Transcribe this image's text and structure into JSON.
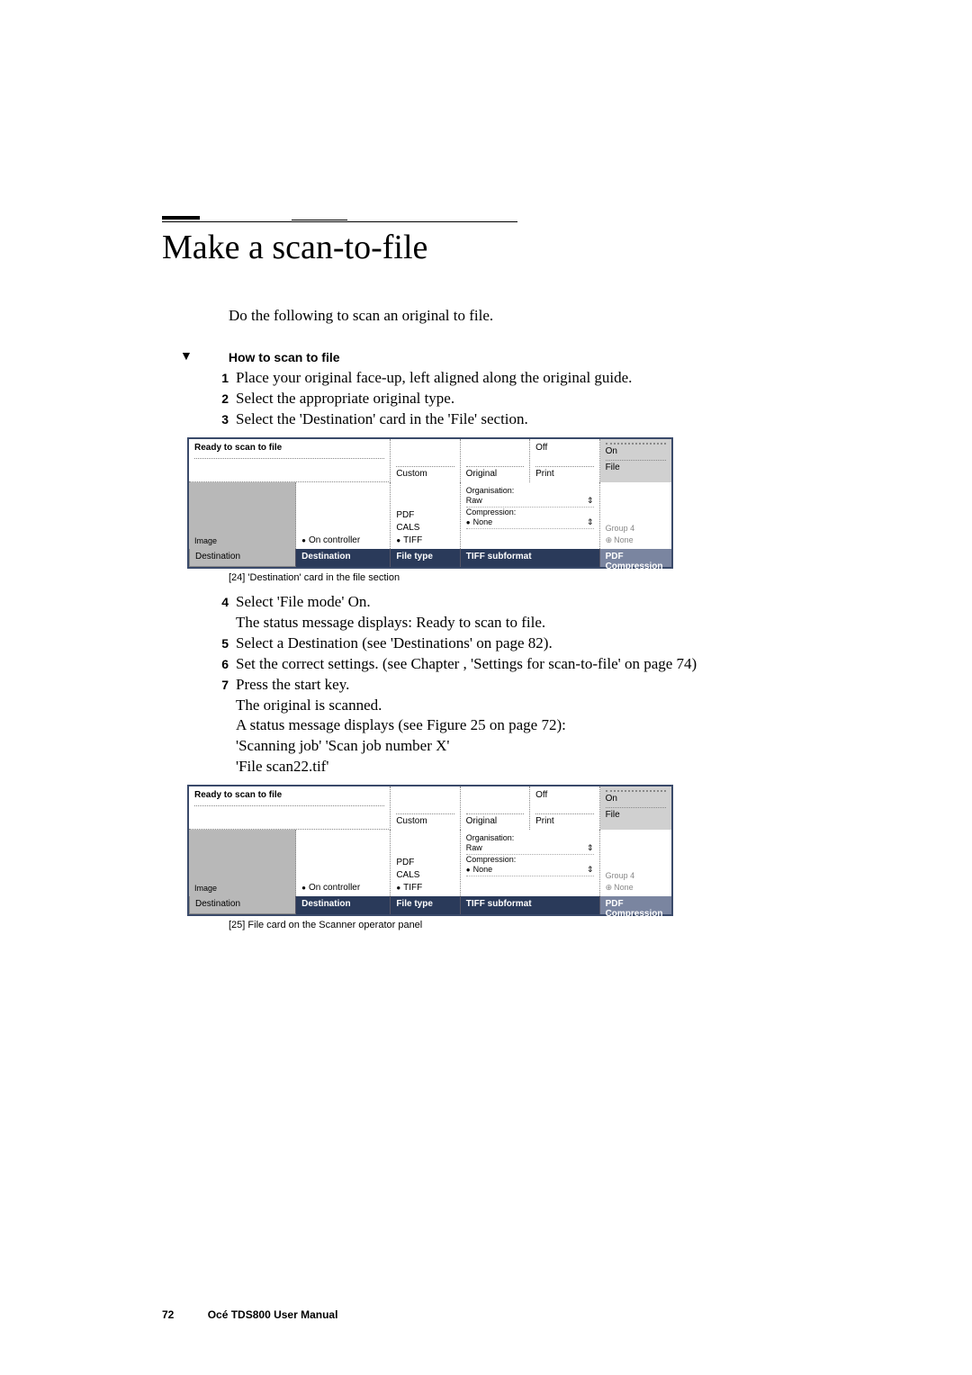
{
  "title": "Make a scan-to-file",
  "intro": "Do the following to scan an original to file.",
  "procedure_label": "How to scan to file",
  "steps_a": [
    "Place your original face-up, left aligned along the original guide.",
    "Select the appropriate original type.",
    "Select the 'Destination' card in the 'File' section."
  ],
  "caption1": "[24] 'Destination' card in the file section",
  "steps_b": [
    {
      "n": "4",
      "t": "Select 'File mode' On.\nThe status message displays: Ready to scan to file."
    },
    {
      "n": "5",
      "t": "Select a Destination (see 'Destinations' on page 82)."
    },
    {
      "n": "6",
      "t": "Set the correct settings. (see Chapter , 'Settings for scan-to-file' on page 74)"
    },
    {
      "n": "7",
      "t": "Press the start key.\nThe original is scanned.\nA status message displays (see Figure 25 on page 72):\n'Scanning job' 'Scan job number X'\n'File scan22.tif'"
    }
  ],
  "caption2": "[25] File card on the Scanner operator panel",
  "panel": {
    "ready": "Ready to scan to file",
    "custom": "Custom",
    "original": "Original",
    "off": "Off",
    "print": "Print",
    "on": "On",
    "file": "File",
    "image": "Image",
    "on_controller": "On controller",
    "pdf": "PDF",
    "cals": "CALS",
    "tiff": "TIFF",
    "organisation": "Organisation:",
    "raw": "Raw",
    "compression": "Compression:",
    "none": "None",
    "group4": "Group 4",
    "none2": "None",
    "destination_tab": "Destination",
    "destination_tab2": "Destination",
    "filetype_tab": "File type",
    "tiffsub_tab": "TIFF subformat",
    "pdfcomp_tab": "PDF Compression"
  },
  "footer": {
    "page": "72",
    "manual": "Océ TDS800 User Manual"
  }
}
